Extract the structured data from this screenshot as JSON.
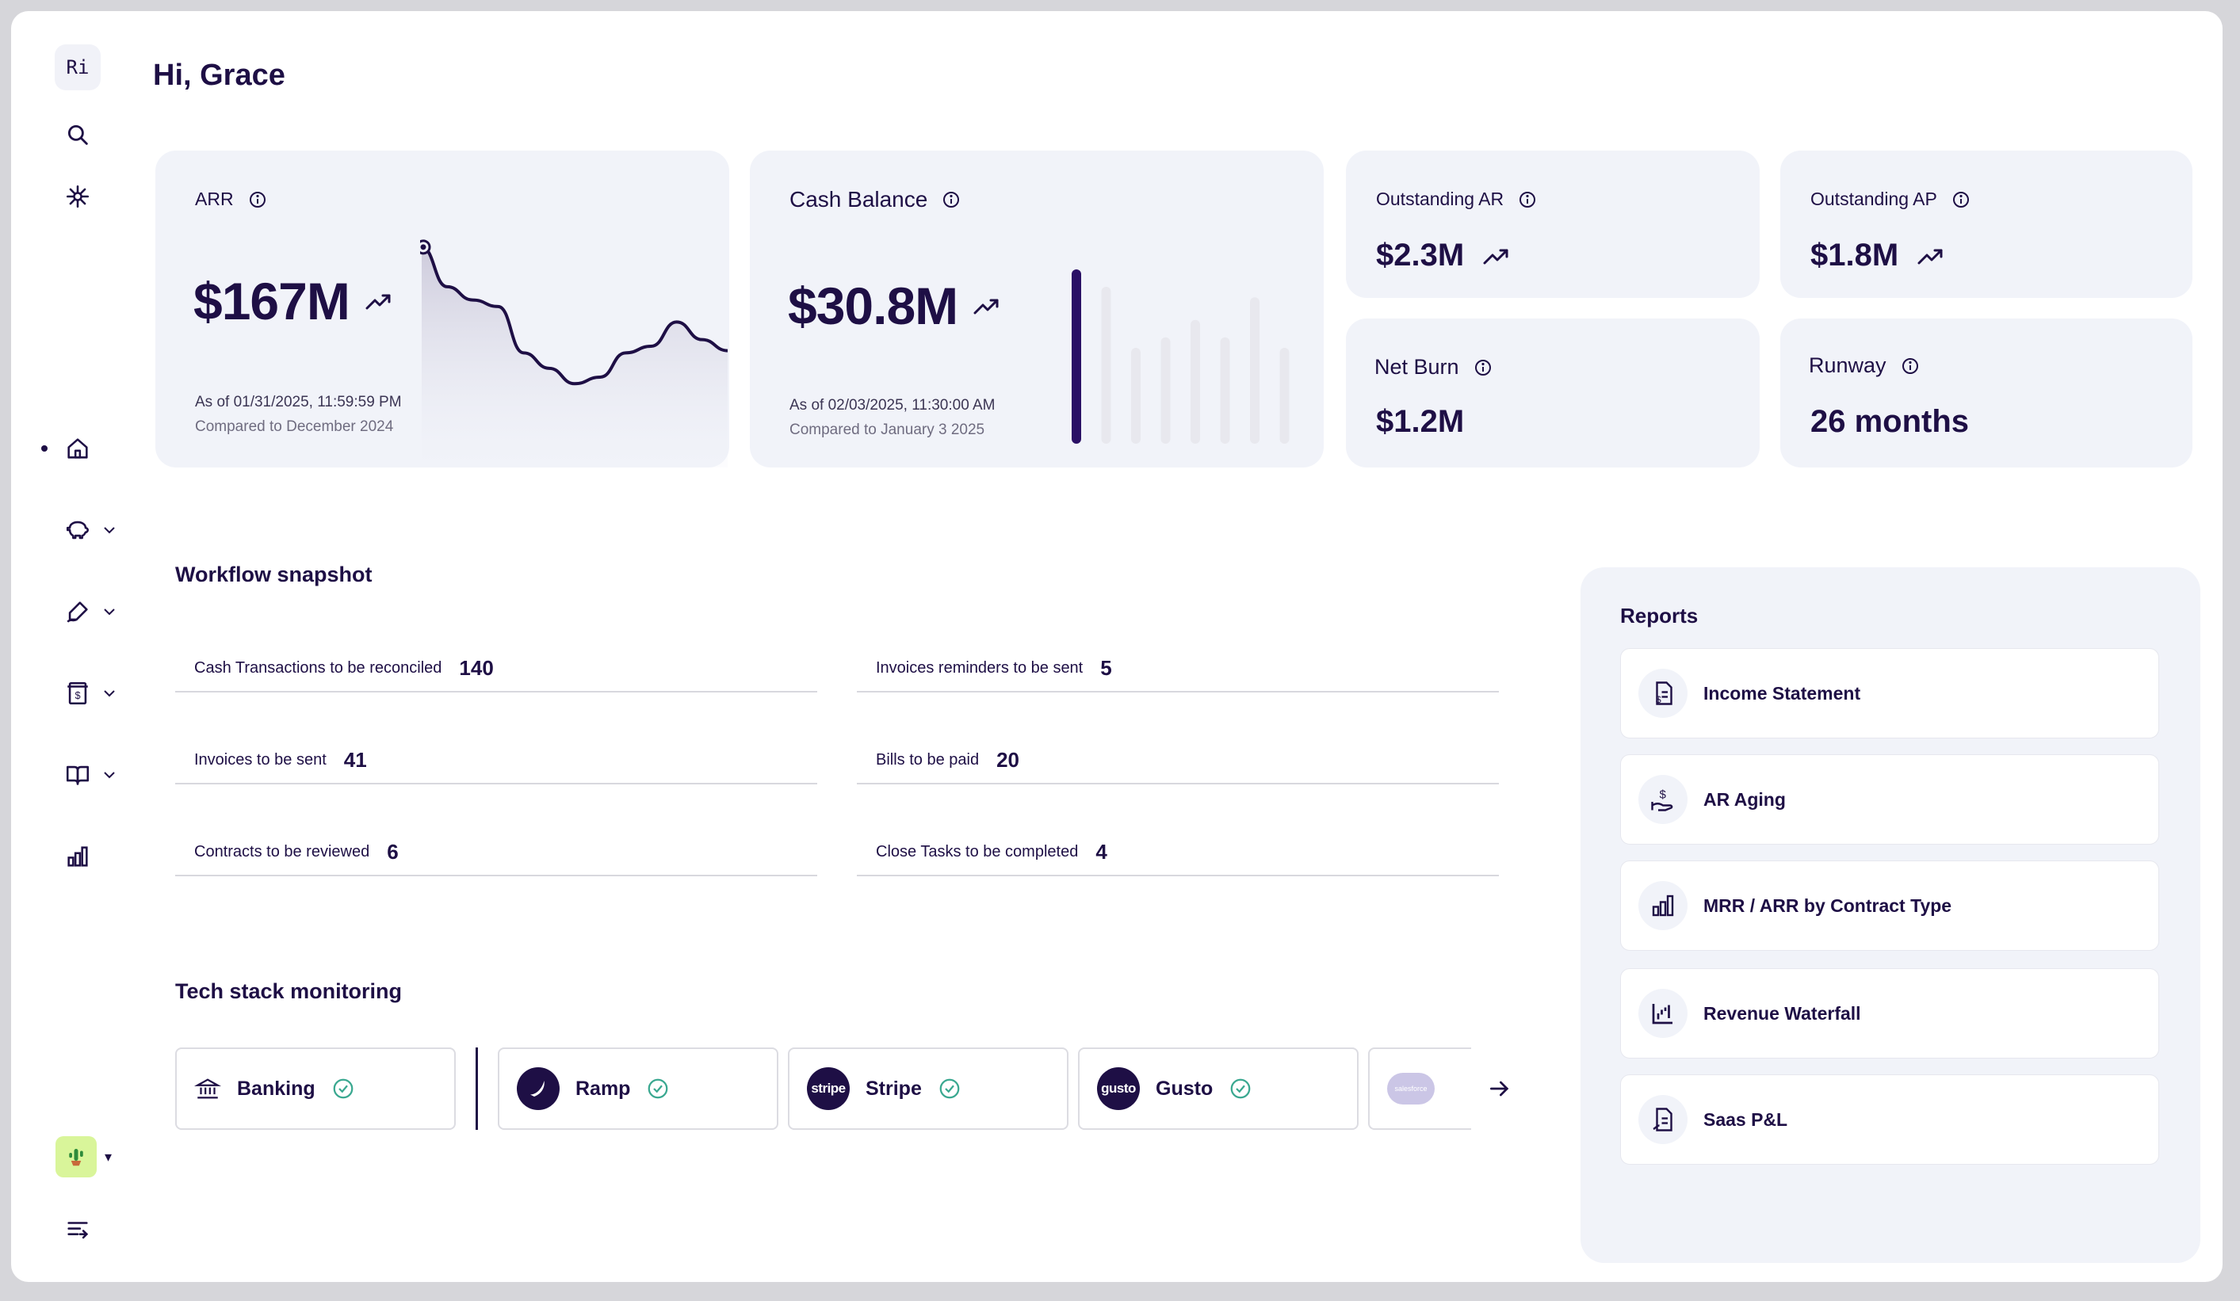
{
  "app": {
    "logo_text": "Ri",
    "greeting": "Hi, Grace"
  },
  "sidebar": {
    "items": [
      {
        "icon": "search-icon"
      },
      {
        "icon": "sparkle-icon"
      },
      {
        "icon": "home-icon",
        "active": true
      },
      {
        "icon": "piggy-bank-icon",
        "expandable": true
      },
      {
        "icon": "signature-icon",
        "expandable": true
      },
      {
        "icon": "receipt-icon",
        "expandable": true
      },
      {
        "icon": "book-icon",
        "expandable": true
      },
      {
        "icon": "bar-chart-icon"
      }
    ],
    "bottom": [
      {
        "icon": "cactus-avatar"
      },
      {
        "icon": "collapse-menu-icon"
      }
    ]
  },
  "kpis": {
    "arr": {
      "title": "ARR",
      "value": "$167M",
      "as_of": "As of 01/31/2025, 11:59:59 PM",
      "compared": "Compared to December 2024",
      "trend": "up"
    },
    "cash": {
      "title": "Cash Balance",
      "value": "$30.8M",
      "as_of": "As of 02/03/2025, 11:30:00 AM",
      "compared": "Compared to January 3 2025",
      "trend": "up"
    },
    "outstanding_ar": {
      "title": "Outstanding AR",
      "value": "$2.3M",
      "trend": "up"
    },
    "outstanding_ap": {
      "title": "Outstanding AP",
      "value": "$1.8M",
      "trend": "up"
    },
    "net_burn": {
      "title": "Net Burn",
      "value": "$1.2M"
    },
    "runway": {
      "title": "Runway",
      "value": "26 months"
    }
  },
  "chart_data": [
    {
      "type": "area",
      "title": "ARR",
      "values": [
        100,
        82,
        76,
        73,
        52,
        45,
        38,
        41,
        52,
        55,
        66,
        58,
        53
      ],
      "ylim": [
        0,
        110
      ],
      "color": "#1e0f45"
    },
    {
      "type": "bar",
      "title": "Cash Balance",
      "values": [
        100,
        90,
        55,
        61,
        71,
        61,
        84,
        55
      ],
      "highlight_index": 0,
      "ylim": [
        0,
        100
      ],
      "colors": {
        "highlight": "#2a1065",
        "other": "#e8e8ee"
      }
    }
  ],
  "workflow": {
    "title": "Workflow snapshot",
    "rows": [
      {
        "label": "Cash Transactions to be reconciled",
        "count": "140"
      },
      {
        "label": "Invoices reminders to be sent",
        "count": "5"
      },
      {
        "label": "Invoices to be sent",
        "count": "41"
      },
      {
        "label": "Bills to be paid",
        "count": "20"
      },
      {
        "label": "Contracts to be reviewed",
        "count": "6"
      },
      {
        "label": "Close Tasks to be completed",
        "count": "4"
      }
    ]
  },
  "tech": {
    "title": "Tech stack monitoring",
    "items": [
      {
        "name": "Banking",
        "status": "ok"
      },
      {
        "name": "Ramp",
        "status": "ok"
      },
      {
        "name": "Stripe",
        "logo": "stripe",
        "status": "ok"
      },
      {
        "name": "Gusto",
        "logo": "gusto",
        "status": "ok"
      },
      {
        "logo": "salesforce"
      }
    ]
  },
  "reports": {
    "title": "Reports",
    "items": [
      {
        "label": "Income Statement",
        "icon": "income-statement-icon"
      },
      {
        "label": "AR Aging",
        "icon": "ar-aging-icon"
      },
      {
        "label": "MRR / ARR by Contract Type",
        "icon": "bar-chart-icon"
      },
      {
        "label": "Revenue Waterfall",
        "icon": "waterfall-chart-icon"
      },
      {
        "label": "Saas P&L",
        "icon": "saas-pl-icon"
      }
    ]
  }
}
